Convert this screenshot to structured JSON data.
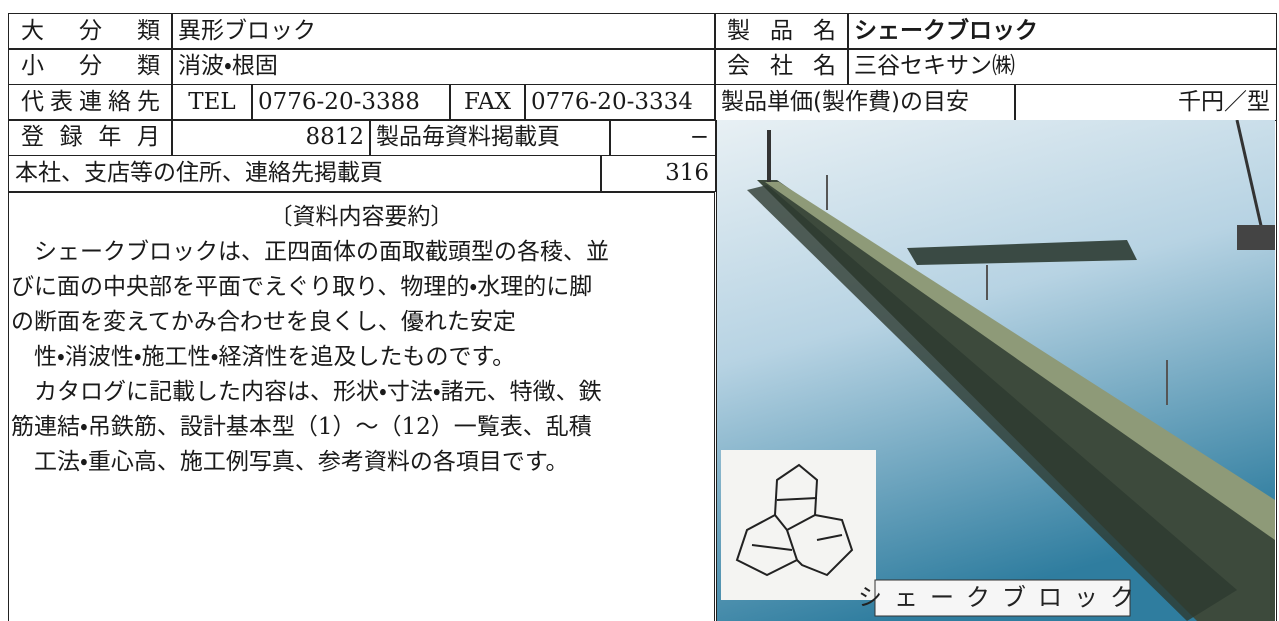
{
  "info": {
    "major_class": {
      "label": "大分類",
      "value": "異形ブロック"
    },
    "minor_class": {
      "label": "小分類",
      "value": "消波・根固"
    },
    "contact": {
      "label": "代表連絡先",
      "tel_label": "TEL",
      "tel": "0776-20-3388",
      "fax_label": "FAX",
      "fax": "0776-20-3334"
    },
    "registered": {
      "label": "登録年月",
      "value": 8812,
      "page_label": "製品毎資料掲載頁",
      "page": "−"
    },
    "address_page": {
      "label": "本社、支店等の住所、連絡先掲載頁",
      "value": 316
    },
    "product_name": {
      "label": "製品名",
      "value": "シェークブロック"
    },
    "company": {
      "label": "会社名",
      "value": "三谷セキサン㈱"
    },
    "unit_price": {
      "label": "製品単価(製作費)の目安",
      "unit": "千円／型"
    }
  },
  "summary": {
    "heading": "〔資料内容要約〕",
    "lines": [
      "　シェークブロックは、正四面体の面取截頭型の各稜、並",
      "びに面の中央部を平面でえぐり取り、物理的・水理的に脚",
      "の断面を変えてかみ合わせを良くし、優れた安定",
      "　性・消波性・施工性・経済性を追及したものです。",
      "　カタログに記載した内容は、形状・寸法・諸元、特徴、鉄",
      "筋連結・吊鉄筋、設計基本型（1）～（12）一覧表、乱積",
      "　工法・重心高、施工例写真、参考資料の各項目です。"
    ]
  },
  "photo": {
    "caption": "シェークブロック"
  }
}
